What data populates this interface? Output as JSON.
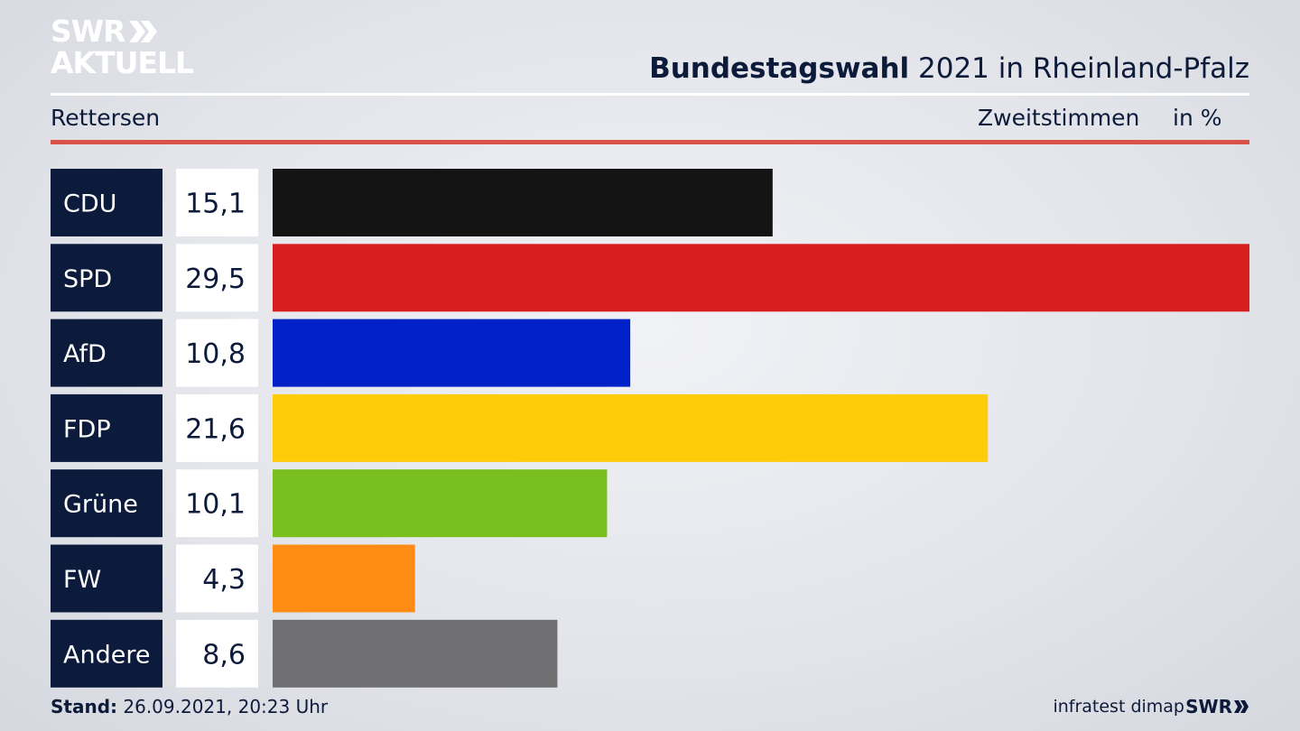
{
  "header": {
    "logo_line1": "SWR",
    "logo_line2": "AKTUELL",
    "title_bold": "Bundestagswahl",
    "title_rest": " 2021 in Rheinland-Pfalz",
    "location": "Rettersen",
    "vote_type": "Zweitstimmen",
    "unit": "in %"
  },
  "footer": {
    "stand_label": "Stand:",
    "stand_value": " 26.09.2021, 20:23 Uhr",
    "source": "infratest dimap",
    "broadcaster": "SWR"
  },
  "colors": {
    "label_bg": "#0c1b3b",
    "value_bg": "#ffffff",
    "accent_red": "#d9534a"
  },
  "chart_data": {
    "type": "bar",
    "orientation": "horizontal",
    "categories": [
      "CDU",
      "SPD",
      "AfD",
      "FDP",
      "Grüne",
      "FW",
      "Andere"
    ],
    "values": [
      15.1,
      29.5,
      10.8,
      21.6,
      10.1,
      4.3,
      8.6
    ],
    "value_labels": [
      "15,1",
      "29,5",
      "10,8",
      "21,6",
      "10,1",
      "4,3",
      "8,6"
    ],
    "colors": [
      "#141414",
      "#d81f1f",
      "#0020c8",
      "#ffcc0a",
      "#79bf1e",
      "#ff8c14",
      "#707072"
    ],
    "xlim": [
      0,
      29.5
    ]
  }
}
